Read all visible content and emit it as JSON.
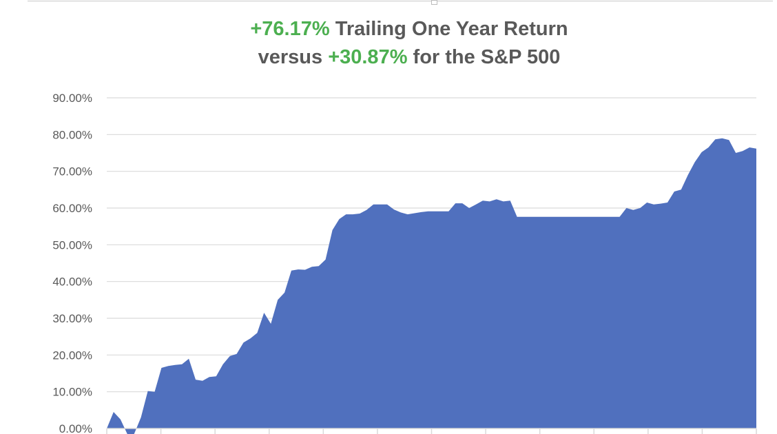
{
  "chart_data": {
    "type": "area",
    "title": {
      "line1_value": "+76.17%",
      "line1_text": "Trailing One Year Return",
      "line2_prefix": "versus",
      "line2_value": "+30.87%",
      "line2_text": "for the S&P 500"
    },
    "xlabel": "",
    "ylabel": "",
    "ylim": [
      0,
      90
    ],
    "y_ticks": [
      "0.00%",
      "10.00%",
      "20.00%",
      "30.00%",
      "40.00%",
      "50.00%",
      "60.00%",
      "70.00%",
      "80.00%",
      "90.00%"
    ],
    "x_tick_count": 13,
    "grid": true,
    "legend": "none",
    "colors": {
      "fill": "#5070be",
      "highlight": "#4caf50",
      "text": "#595959",
      "grid": "#d9d9d9"
    },
    "values": [
      0,
      4.5,
      2.5,
      -1.5,
      -1.5,
      3,
      10.2,
      10,
      16.5,
      17,
      17.3,
      17.5,
      19,
      13.3,
      13,
      14,
      14.2,
      17.5,
      19.7,
      20.3,
      23.4,
      24.5,
      26,
      31.5,
      28.5,
      35,
      37,
      43,
      43.3,
      43.2,
      44,
      44.2,
      46,
      54,
      57,
      58.3,
      58.3,
      58.5,
      59.5,
      61,
      61,
      61,
      59.6,
      58.8,
      58.3,
      58.6,
      58.9,
      59.1,
      59.1,
      59.1,
      59.1,
      61.3,
      61.3,
      60,
      61,
      62,
      61.8,
      62.4,
      61.8,
      62,
      57.6,
      57.6,
      57.6,
      57.6,
      57.6,
      57.6,
      57.6,
      57.6,
      57.6,
      57.6,
      57.6,
      57.6,
      57.6,
      57.6,
      57.6,
      57.6,
      60,
      59.5,
      60,
      61.5,
      61,
      61.2,
      61.5,
      64.5,
      65,
      69,
      72.5,
      75.2,
      76.5,
      78.7,
      79,
      78.5,
      75,
      75.5,
      76.5,
      76.17
    ]
  }
}
